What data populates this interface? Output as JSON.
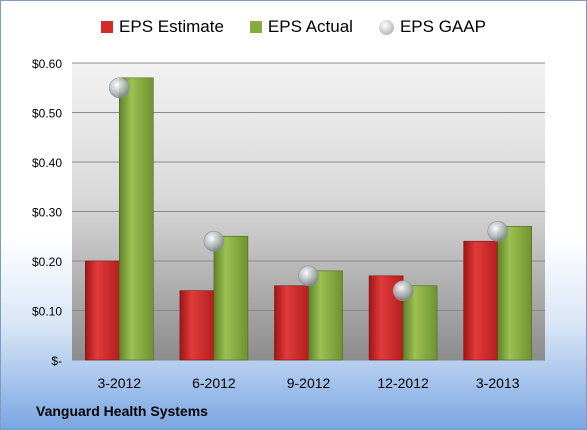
{
  "company": "Vanguard Health Systems",
  "chart_data": {
    "type": "bar",
    "categories": [
      "3-2012",
      "6-2012",
      "9-2012",
      "12-2012",
      "3-2013"
    ],
    "series": [
      {
        "name": "EPS Estimate",
        "kind": "bar",
        "color": "#d42a2a",
        "values": [
          0.2,
          0.14,
          0.15,
          0.17,
          0.24
        ]
      },
      {
        "name": "EPS Actual",
        "kind": "bar",
        "color": "#86ac3e",
        "values": [
          0.57,
          0.25,
          0.18,
          0.15,
          0.27
        ]
      },
      {
        "name": "EPS GAAP",
        "kind": "marker",
        "color": "#b0b6bd",
        "values": [
          0.55,
          0.24,
          0.17,
          0.14,
          0.26
        ]
      }
    ],
    "yticks": [
      "$-",
      "$0.10",
      "$0.20",
      "$0.30",
      "$0.40",
      "$0.50",
      "$0.60"
    ],
    "ylim": [
      0,
      0.6
    ],
    "grid": true,
    "legend_position": "top"
  }
}
